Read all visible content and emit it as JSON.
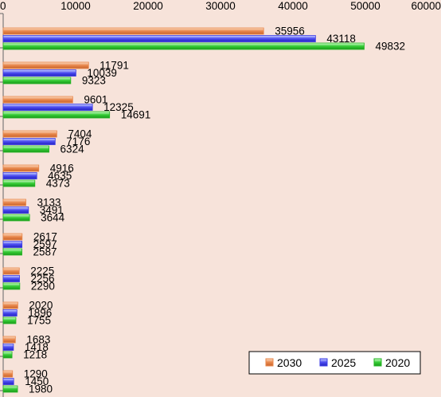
{
  "chart_data": {
    "type": "bar",
    "orientation": "horizontal",
    "xlim": [
      0,
      60000
    ],
    "x_ticks": [
      "0",
      "10000",
      "20000",
      "30000",
      "40000",
      "50000",
      "60000"
    ],
    "legend_position": "bottom-right",
    "grid": false,
    "series": [
      {
        "name": "2030",
        "color": "#e8864a",
        "values": [
          35956,
          11791,
          9601,
          7404,
          4916,
          3133,
          2617,
          2225,
          2020,
          1683,
          1290
        ]
      },
      {
        "name": "2025",
        "color": "#3a3ae6",
        "values": [
          43118,
          10039,
          12325,
          7176,
          4635,
          3491,
          2597,
          2256,
          1896,
          1418,
          1450
        ]
      },
      {
        "name": "2020",
        "color": "#22b422",
        "values": [
          49832,
          9323,
          14691,
          6324,
          4373,
          3644,
          2587,
          2290,
          1755,
          1218,
          1980
        ]
      }
    ],
    "legend": [
      "2030",
      "2025",
      "2020"
    ]
  }
}
